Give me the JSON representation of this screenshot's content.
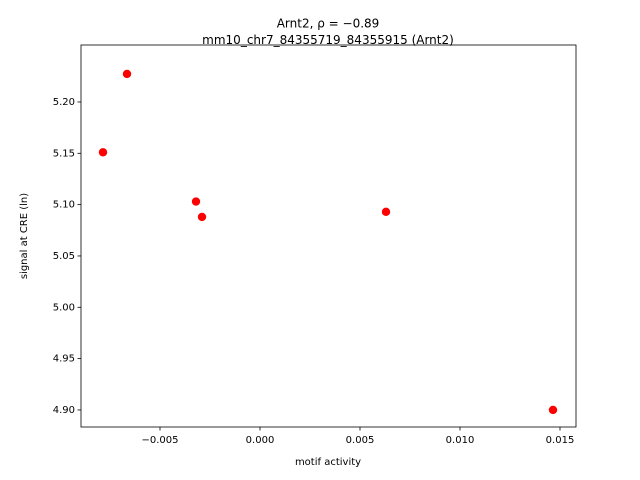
{
  "chart_data": {
    "type": "scatter",
    "title": "Arnt2, ρ = −0.89",
    "subtitle": "mm10_chr7_84355719_84355915 (Arnt2)",
    "x_label": "motif activity",
    "y_label": "signal at CRE (ln)",
    "color": "#ff0000",
    "x": [
      -0.00665,
      -0.00785,
      -0.0032,
      -0.0029,
      0.0063,
      0.01465
    ],
    "values": [
      5.2273,
      5.151,
      5.103,
      5.088,
      5.093,
      4.9
    ],
    "xlim": [
      -0.00895,
      0.0158
    ],
    "ylim": [
      4.8834,
      5.2555
    ],
    "xticks": [
      {
        "value": -0.005,
        "label": "−0.005"
      },
      {
        "value": 0,
        "label": "0.000"
      },
      0.005,
      {
        "value": 0.01,
        "label": "0.010"
      },
      0.015
    ],
    "yticks": [
      {
        "value": 4.9,
        "label": "4.90"
      },
      4.95,
      {
        "value": 5.0,
        "label": "5.00"
      },
      5.05,
      {
        "value": 5.1,
        "label": "5.10"
      },
      5.15,
      {
        "value": 5.2,
        "label": "5.20"
      }
    ]
  }
}
